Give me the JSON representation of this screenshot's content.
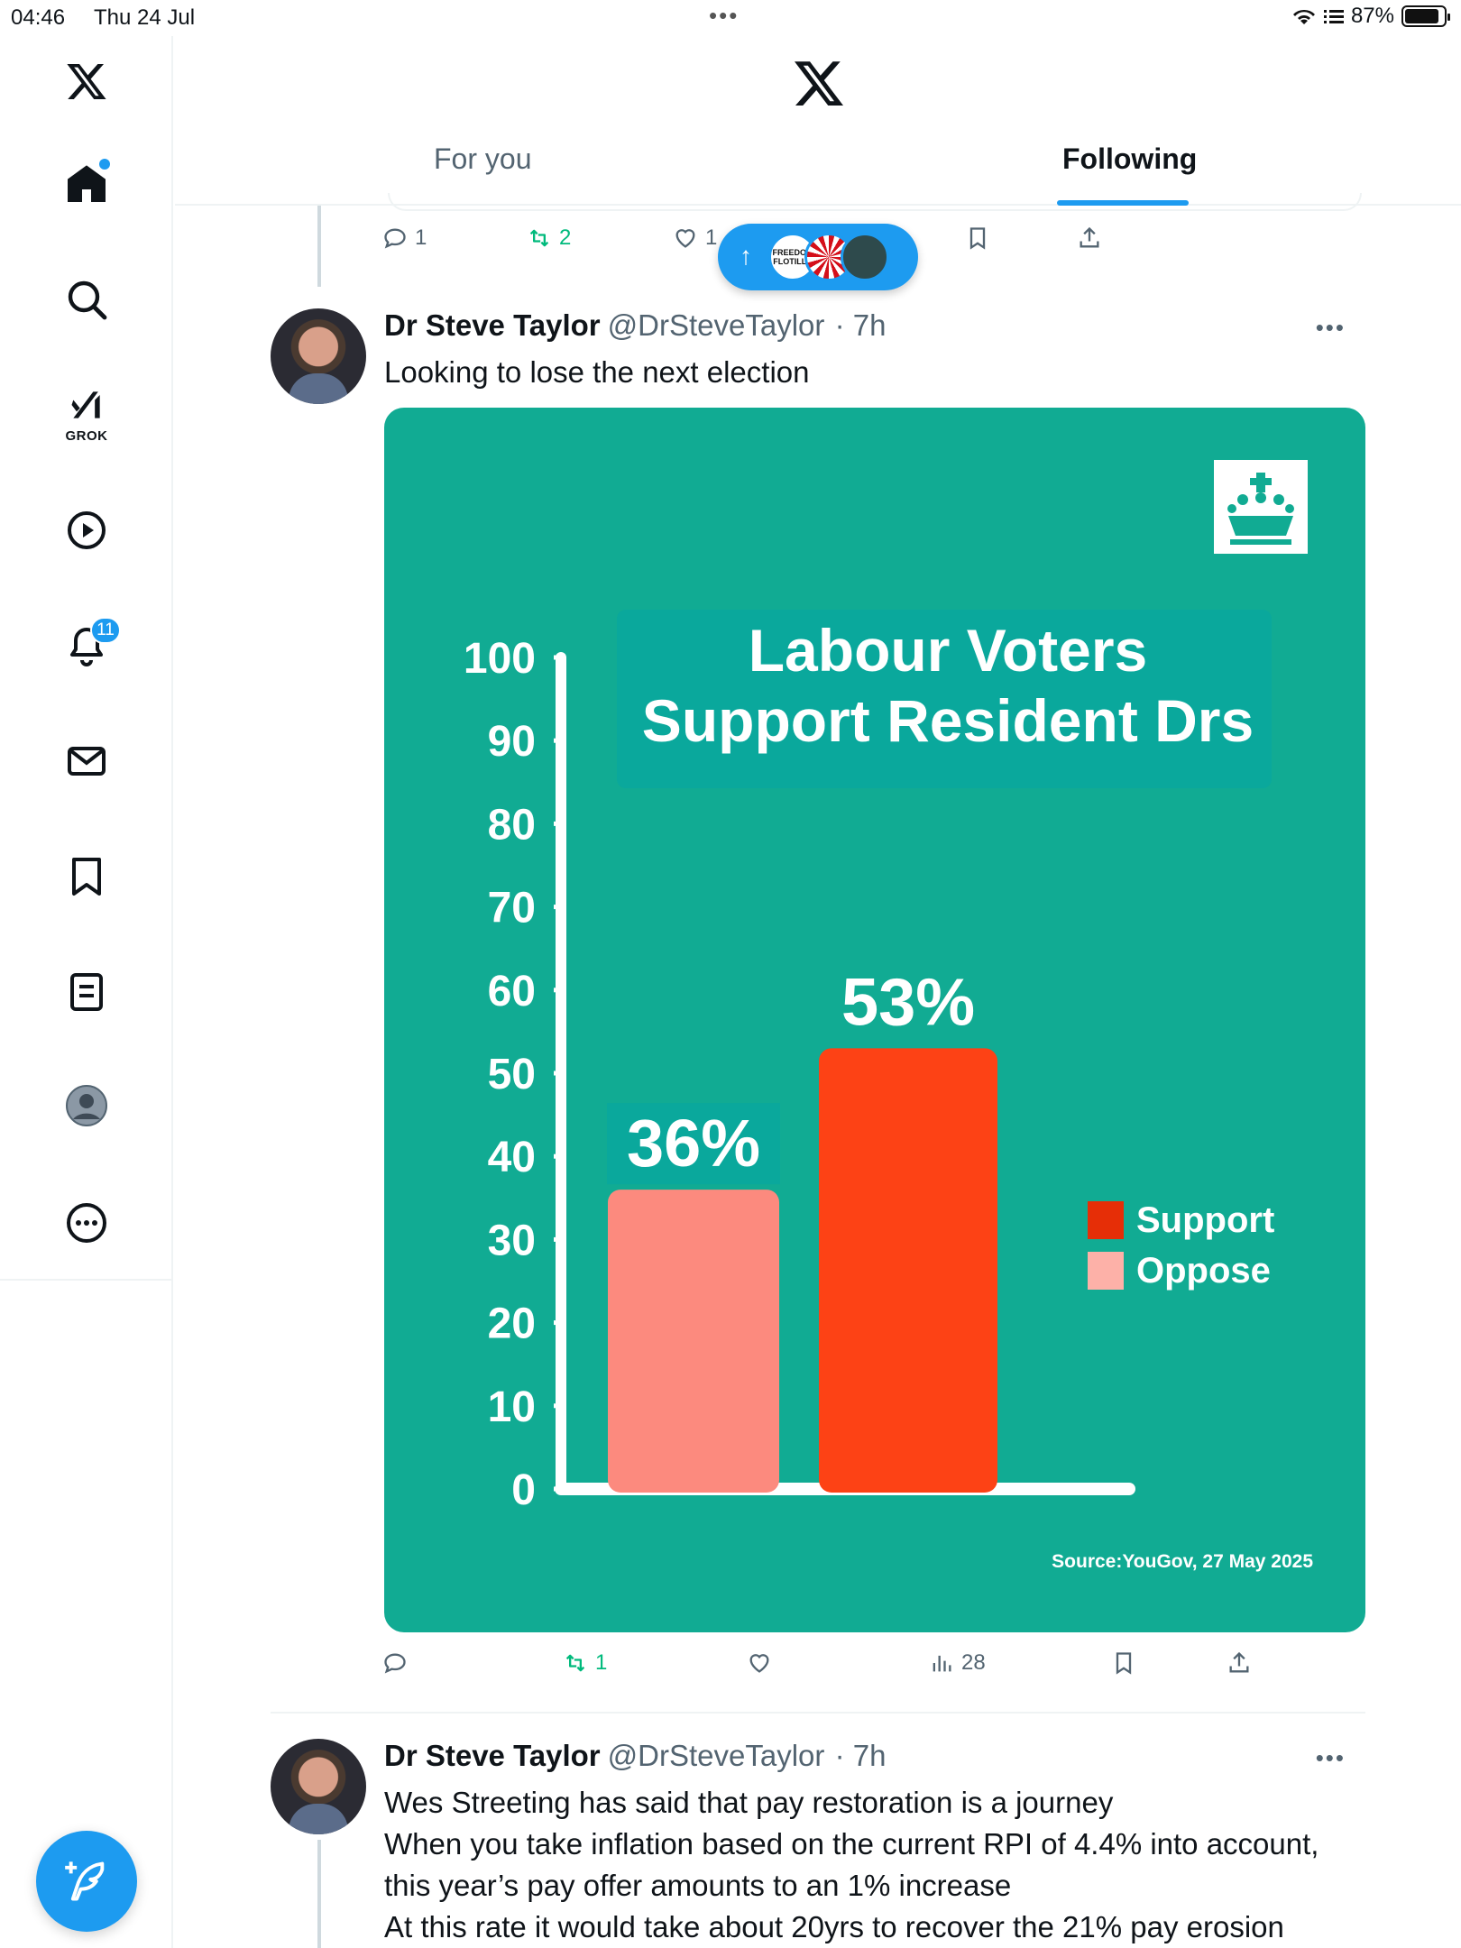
{
  "status_bar": {
    "time": "04:46",
    "date": "Thu 24 Jul",
    "battery": "87%",
    "battery_level": 0.87
  },
  "header": {
    "tabs": [
      {
        "label": "For you",
        "active": false
      },
      {
        "label": "Following",
        "active": true
      }
    ]
  },
  "sidebar": {
    "items": [
      {
        "icon": "x-logo-icon"
      },
      {
        "icon": "home-icon",
        "has_dot": true
      },
      {
        "icon": "search-icon"
      },
      {
        "icon": "grok-icon",
        "label": "GROK"
      },
      {
        "icon": "video-icon"
      },
      {
        "icon": "bell-icon",
        "badge": "11"
      },
      {
        "icon": "mail-icon"
      },
      {
        "icon": "bookmark-icon"
      },
      {
        "icon": "lists-icon"
      },
      {
        "icon": "profile-icon"
      },
      {
        "icon": "more-icon"
      }
    ],
    "compose_icon": "compose-icon"
  },
  "colors": {
    "accent": "#1d9bf0",
    "retweet_green": "#00ba7c",
    "chart_bg": "#11ab93"
  },
  "previous_tweet": {
    "replies": "1",
    "retweets": "2",
    "likes": "1"
  },
  "new_posts_pill": {
    "avatars": [
      "FREEDOM FLOTILLA",
      "",
      ""
    ]
  },
  "tweets": [
    {
      "name": "Dr Steve Taylor",
      "handle": "@DrSteveTaylor",
      "time": "· 7h",
      "text": [
        "Looking to lose the next election"
      ],
      "replies": "",
      "retweets": "1",
      "likes": "",
      "views": "28"
    },
    {
      "name": "Dr Steve Taylor",
      "handle": "@DrSteveTaylor",
      "time": "· 7h",
      "text": [
        "Wes Streeting has said that pay restoration is a journey",
        "When you take inflation based on the current RPI of 4.4% into account,",
        "this year’s pay offer amounts to an 1% increase",
        "At this rate it would take about 20yrs to recover the 21% pay erosion"
      ]
    }
  ],
  "chart_data": {
    "type": "bar",
    "title_lines": [
      "Labour Voters",
      "Support Resident Drs"
    ],
    "categories": [
      "Oppose",
      "Support"
    ],
    "values": [
      36,
      53
    ],
    "data_labels": [
      "36%",
      "53%"
    ],
    "colors": [
      "#fc8a7e",
      "#fd4215"
    ],
    "legend": [
      {
        "label": "Support",
        "color": "#e62e07"
      },
      {
        "label": "Oppose",
        "color": "#fdb1a8"
      }
    ],
    "yticks": [
      "0",
      "10",
      "20",
      "30",
      "40",
      "50",
      "60",
      "70",
      "80",
      "90",
      "100"
    ],
    "ylim": [
      0,
      100
    ],
    "source": "Source:YouGov, 27 May 2025",
    "legend_position": "right"
  }
}
